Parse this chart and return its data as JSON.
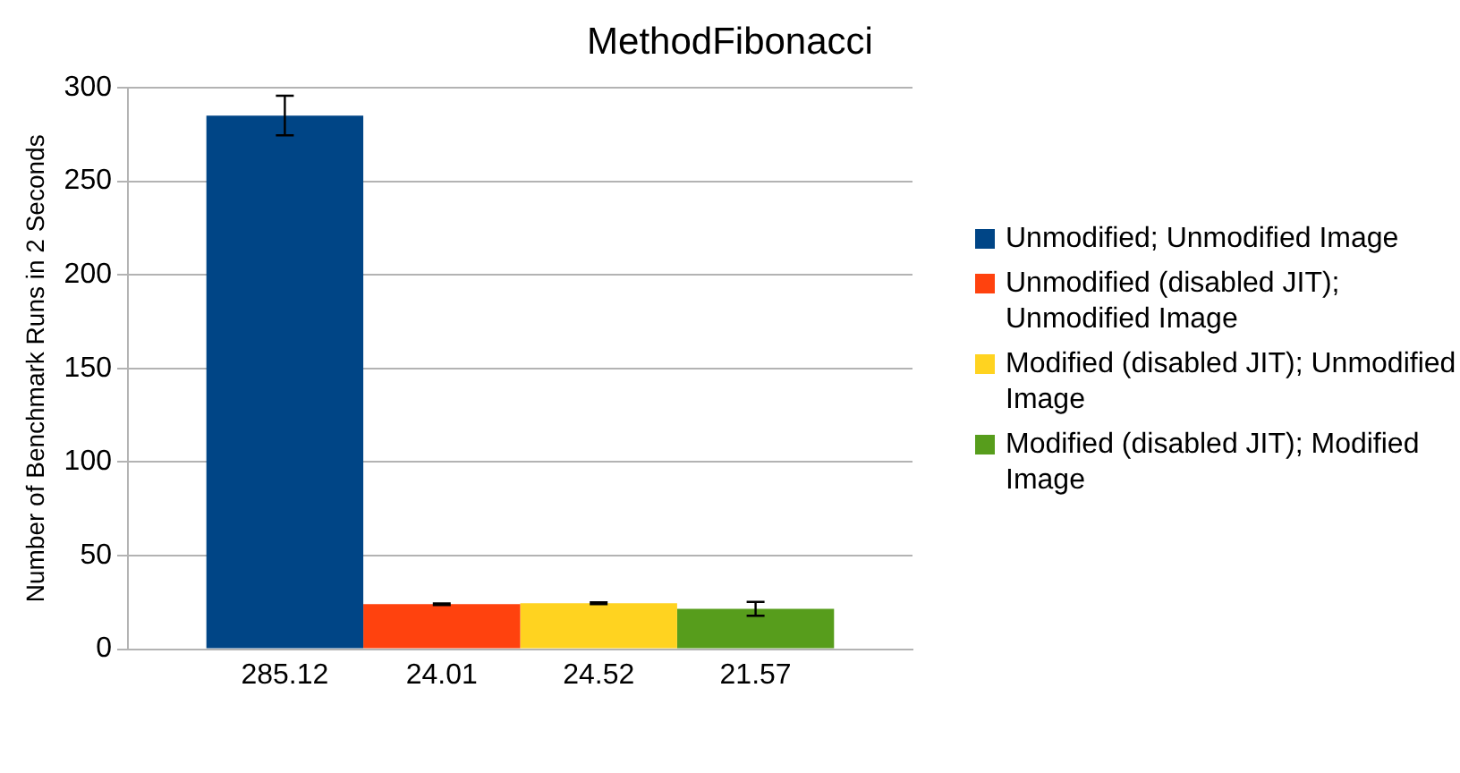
{
  "chart_data": {
    "type": "bar",
    "title": "MethodFibonacci",
    "ylabel": "Number of Benchmark Runs in 2 Seconds",
    "categories": [
      null
    ],
    "series": [
      {
        "name": "Unmodified; Unmodified Image",
        "color": "#004586",
        "values": [
          285.12
        ],
        "errors": [
          10.6
        ]
      },
      {
        "name": "Unmodified (disabled JIT); Unmodified Image",
        "color": "#ff420e",
        "values": [
          24.01
        ],
        "errors": [
          0.5
        ]
      },
      {
        "name": "Modified (disabled JIT); Unmodified Image",
        "color": "#ffd320",
        "values": [
          24.52
        ],
        "errors": [
          0.5
        ]
      },
      {
        "name": "Modified (disabled JIT); Modified Image",
        "color": "#579d1c",
        "values": [
          21.57
        ],
        "errors": [
          3.7
        ]
      }
    ],
    "ylim": [
      0,
      300
    ],
    "yticks": [
      0,
      50,
      100,
      150,
      200,
      250,
      300
    ],
    "grid": "y",
    "legend": "right",
    "data_labels": true
  }
}
